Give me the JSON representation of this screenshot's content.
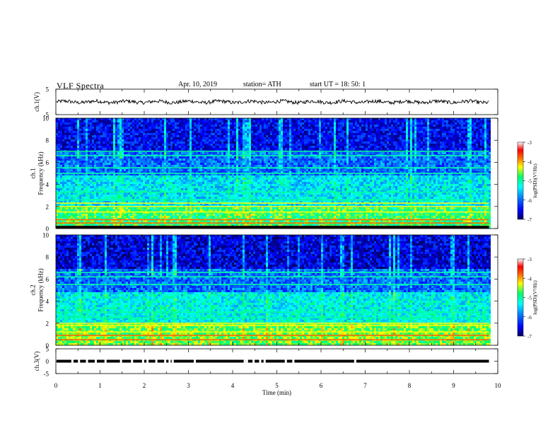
{
  "header": {
    "title": "VLF  Spectra",
    "date": "Apr. 10, 2019",
    "station": "station= ATH",
    "start": "start  UT  =    18: 50: 1"
  },
  "chart_data": [
    {
      "type": "line",
      "name": "ch1-waveform",
      "ylabel": "ch.1(V)",
      "ylim": [
        -5,
        5
      ],
      "yticks": [
        5,
        -5
      ],
      "xlim": [
        0,
        10
      ],
      "data_extent_min": 9.8,
      "description_level": "noisy trace centered near 0 V, amplitude about ±1 V"
    },
    {
      "type": "heatmap",
      "name": "ch1-spectrogram",
      "ylabel": "ch.1\nFrequency  (kHz)",
      "ylim": [
        0,
        10
      ],
      "yticks": [
        0,
        2,
        4,
        6,
        8,
        10
      ],
      "xlim": [
        0,
        10
      ],
      "data_extent_min": 9.8,
      "colorbar": {
        "label": "log(PSD)(V²/Hz)",
        "range": [
          -7,
          -3
        ],
        "ticks": [
          -3,
          -4,
          -5,
          -6,
          -7
        ]
      },
      "bands_khz": [
        0.2,
        0.5,
        0.8,
        1.5,
        2.0,
        2.3,
        2.6,
        3.3,
        5.0,
        5.5,
        6.6,
        7.0
      ],
      "levels": {
        "low_0_2": -4.8,
        "mid_2_5": -5.4,
        "high_5_7": -6.0,
        "top_7_10": -6.5
      }
    },
    {
      "type": "heatmap",
      "name": "ch2-spectrogram",
      "ylabel": "ch.2\nFrequency  (kHz)",
      "ylim": [
        0,
        10
      ],
      "yticks": [
        0,
        2,
        4,
        6,
        8,
        10
      ],
      "xlim": [
        0,
        10
      ],
      "data_extent_min": 9.8,
      "colorbar": {
        "label": "log(PSD)(V²/Hz)",
        "range": [
          -7,
          -3
        ],
        "ticks": [
          -3,
          -4,
          -5,
          -6,
          -7
        ]
      },
      "bands_khz": [
        0.5,
        0.9,
        1.2,
        1.8,
        2.0,
        2.5,
        3.0,
        5.5,
        6.2,
        6.6
      ],
      "levels": {
        "low_0_2": -4.6,
        "mid_2_5": -5.3,
        "high_5_7": -6.0,
        "top_7_10": -6.6
      }
    },
    {
      "type": "line",
      "name": "ch3-waveform",
      "ylabel": "ch.3(V)",
      "ylim": [
        -5,
        5
      ],
      "yticks": [
        5,
        0,
        -5
      ],
      "xlim": [
        0,
        10
      ],
      "data_extent_min": 9.8,
      "level_v": 0,
      "gaps_min": [
        0.35,
        0.5,
        0.68,
        0.88,
        1.1,
        1.45,
        1.7,
        1.95,
        2.05,
        2.25,
        2.45,
        2.55,
        2.62,
        3.12,
        4.25,
        4.3,
        4.45,
        4.6,
        4.7,
        5.18,
        5.35,
        6.75
      ]
    }
  ],
  "xaxis": {
    "label": "Time  (min)",
    "ticks": [
      0,
      1,
      2,
      3,
      4,
      5,
      6,
      7,
      8,
      9,
      10
    ]
  },
  "colors": {
    "spectrogram_scale": [
      "#000066",
      "#0000ff",
      "#0090ff",
      "#00ffff",
      "#00ff66",
      "#ffff00",
      "#ff6600",
      "#ff0000",
      "#ffffff"
    ]
  }
}
